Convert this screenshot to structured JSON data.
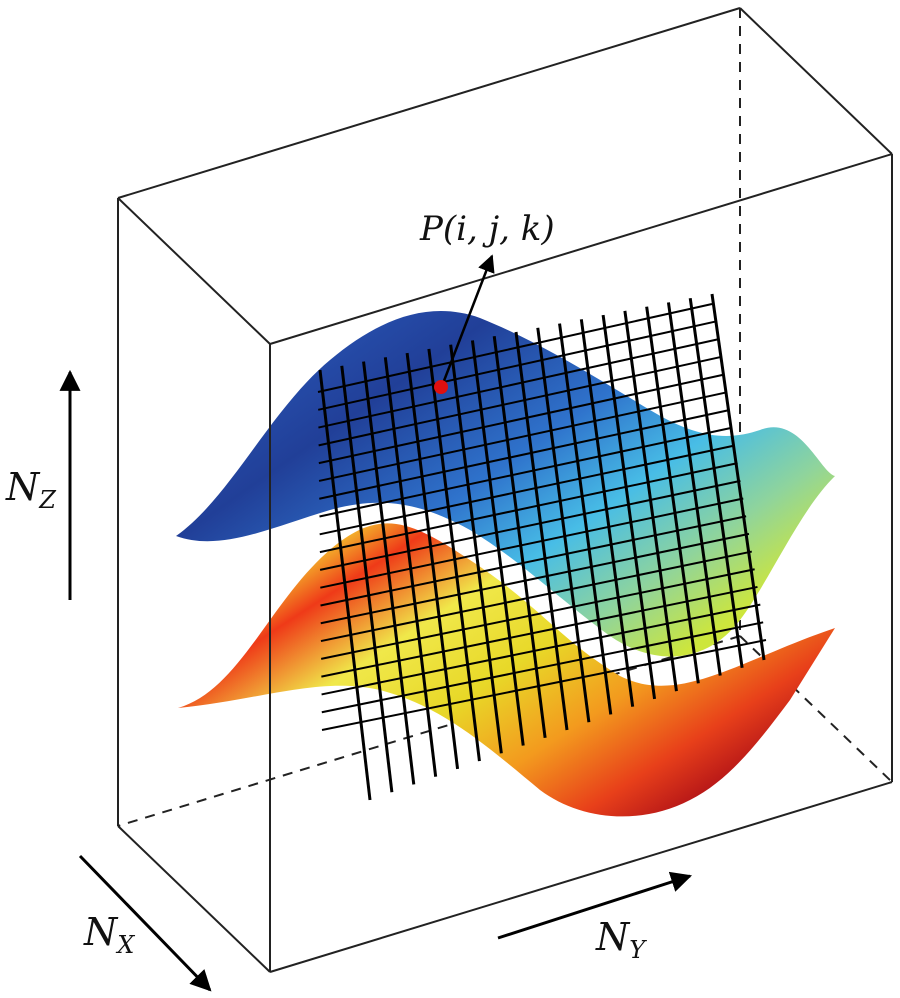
{
  "labels": {
    "point": "P(i, j, k)",
    "axis_z": {
      "main": "N",
      "sub": "Z"
    },
    "axis_x": {
      "main": "N",
      "sub": "X"
    },
    "axis_y": {
      "main": "N",
      "sub": "Y"
    }
  },
  "colors": {
    "box_edge": "#222222",
    "grid_line": "#000000",
    "point": "#e01010",
    "upper_surface_gradient": [
      "#22409a",
      "#2f6fd0",
      "#41b7e8",
      "#8fd4a0",
      "#c8e640"
    ],
    "lower_surface_gradient": [
      "#f2e94a",
      "#e8d830",
      "#f29a20",
      "#ec4a18",
      "#c81a1a"
    ]
  }
}
